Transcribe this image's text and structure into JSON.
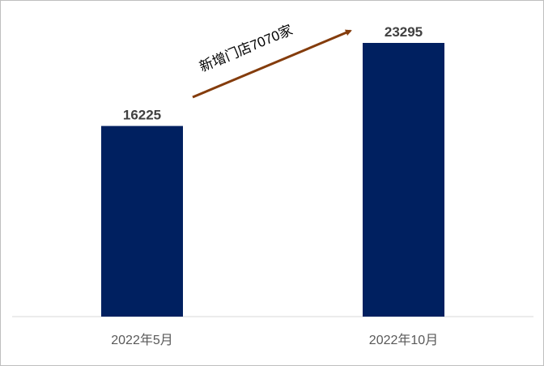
{
  "chart_data": {
    "type": "bar",
    "categories": [
      "2022年5月",
      "2022年10月"
    ],
    "values": [
      16225,
      23295
    ],
    "title": "",
    "xlabel": "",
    "ylabel": "",
    "ylim": [
      0,
      25500
    ],
    "grid": false,
    "legend": "none",
    "bar_color": "#002060",
    "annotation": {
      "text": "新增门店7070家",
      "arrow_color": "#843C0C"
    }
  }
}
